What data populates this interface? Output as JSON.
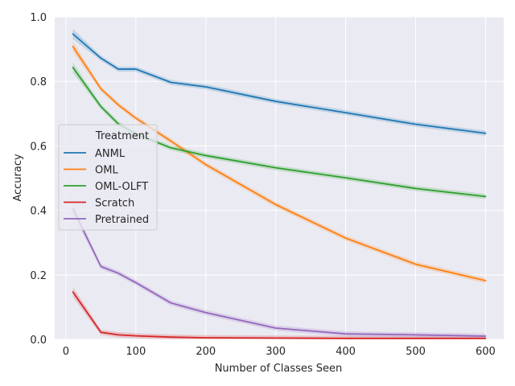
{
  "chart_data": {
    "type": "line",
    "title": "",
    "xlabel": "Number of Classes Seen",
    "ylabel": "Accuracy",
    "xlim": [
      -16,
      626
    ],
    "ylim": [
      0,
      1.0
    ],
    "xticks": [
      0,
      100,
      200,
      300,
      400,
      500,
      600
    ],
    "yticks": [
      0.0,
      0.2,
      0.4,
      0.6,
      0.8,
      1.0
    ],
    "xtick_labels": [
      "0",
      "100",
      "200",
      "300",
      "400",
      "500",
      "600"
    ],
    "ytick_labels": [
      "0.0",
      "0.2",
      "0.4",
      "0.6",
      "0.8",
      "1.0"
    ],
    "grid": true,
    "legend": {
      "title": "Treatment",
      "placement": "center-left"
    },
    "x": [
      10,
      50,
      75,
      100,
      150,
      200,
      300,
      400,
      500,
      600
    ],
    "series": [
      {
        "name": "ANML",
        "color": "#1f77b4",
        "values": [
          0.947,
          0.872,
          0.838,
          0.838,
          0.797,
          0.783,
          0.738,
          0.703,
          0.667,
          0.639
        ]
      },
      {
        "name": "OML",
        "color": "#ff7f0e",
        "values": [
          0.908,
          0.777,
          0.727,
          0.686,
          0.615,
          0.542,
          0.418,
          0.314,
          0.233,
          0.182
        ]
      },
      {
        "name": "OML-OLFT",
        "color": "#2ca02c",
        "values": [
          0.843,
          0.722,
          0.668,
          0.637,
          0.594,
          0.57,
          0.532,
          0.501,
          0.468,
          0.443
        ]
      },
      {
        "name": "Scratch",
        "color": "#d62728",
        "values": [
          0.147,
          0.022,
          0.014,
          0.011,
          0.007,
          0.005,
          0.004,
          0.003,
          0.003,
          0.003
        ]
      },
      {
        "name": "Pretrained",
        "color": "#9467bd",
        "values": [
          0.405,
          0.226,
          0.205,
          0.176,
          0.113,
          0.083,
          0.035,
          0.017,
          0.014,
          0.01
        ]
      }
    ]
  }
}
